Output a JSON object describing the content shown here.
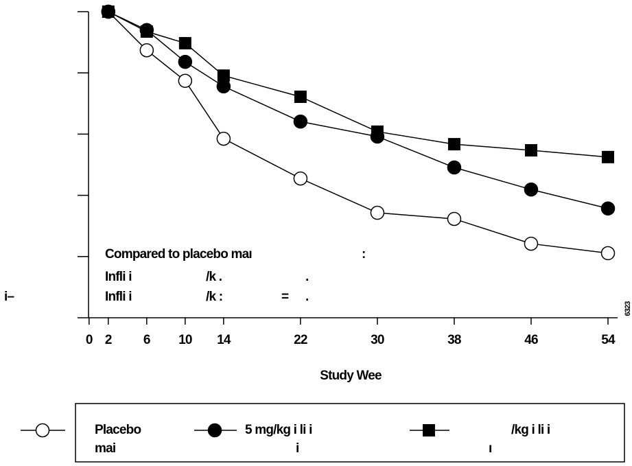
{
  "chart_data": {
    "type": "line",
    "x_label": "Study Wee",
    "x": [
      2,
      6,
      10,
      14,
      22,
      30,
      38,
      46,
      54
    ],
    "xlim": [
      -1.2,
      55
    ],
    "xticks": [
      0,
      2,
      6,
      10,
      14,
      22,
      30,
      38,
      46,
      54
    ],
    "ylim": [
      0,
      100
    ],
    "yticks": [
      20,
      40,
      60,
      80,
      100
    ],
    "series": [
      {
        "name": [
          "Placebo",
          "mai"
        ],
        "marker": "open-circle",
        "color": "#000000",
        "values": [
          100,
          87.4,
          77.4,
          58.5,
          45.5,
          34.3,
          32.3,
          24.2,
          21.1
        ]
      },
      {
        "name": [
          "5 mg/kg i  li i",
          "i"
        ],
        "marker": "filled-circle",
        "color": "#000000",
        "values": [
          100,
          94.0,
          83.6,
          75.6,
          64.1,
          59.2,
          49.1,
          41.9,
          35.7
        ]
      },
      {
        "name": [
          "/kg i  li i",
          "ı"
        ],
        "marker": "filled-square",
        "color": "#000000",
        "values": [
          100,
          93.5,
          89.7,
          79.1,
          72.2,
          60.8,
          56.7,
          54.7,
          52.5
        ]
      }
    ],
    "annotations": [
      "Compared to placebo maı",
      ":",
      "Infli i",
      "/k .",
      ".",
      "Infli i",
      "/k :",
      "=",
      "."
    ],
    "side_label": "i–",
    "figure_code": "6323"
  }
}
